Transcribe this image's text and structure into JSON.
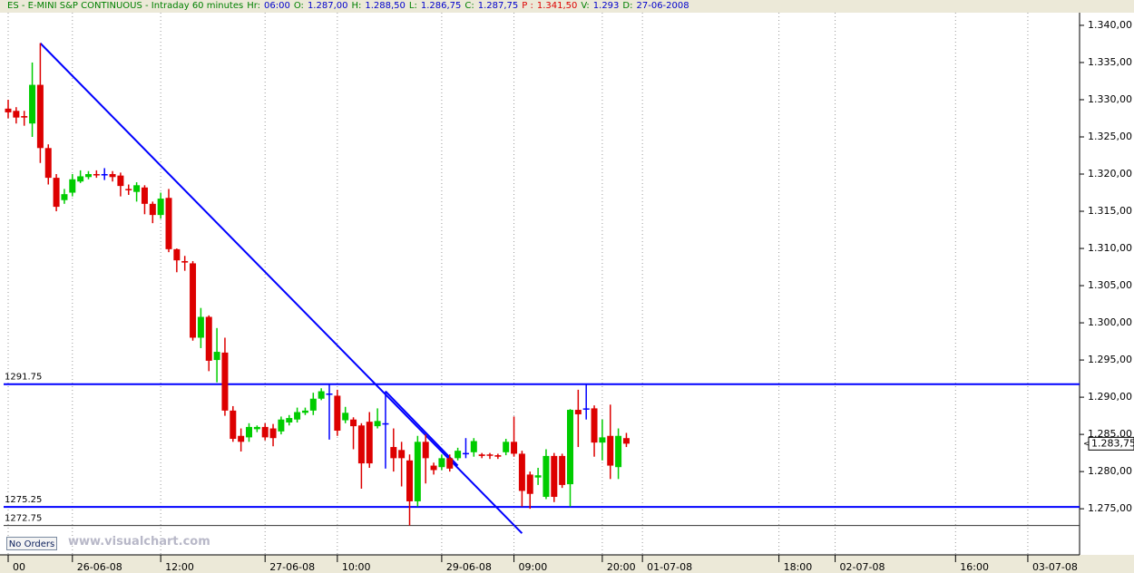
{
  "header": {
    "title": "ES - E-MINI S&P CONTINUOUS - Intraday 60 minutes",
    "title_color": "#008000",
    "fields": [
      {
        "label": "Hr:",
        "value": "06:00",
        "label_color": "#008000",
        "value_color": "#0000cc"
      },
      {
        "label": "O:",
        "value": "1.287,00",
        "label_color": "#008000",
        "value_color": "#0000cc"
      },
      {
        "label": "H:",
        "value": "1.288,50",
        "label_color": "#008000",
        "value_color": "#0000cc"
      },
      {
        "label": "L:",
        "value": "1.286,75",
        "label_color": "#008000",
        "value_color": "#0000cc"
      },
      {
        "label": "C:",
        "value": "1.287,75",
        "label_color": "#008000",
        "value_color": "#0000cc"
      },
      {
        "label": "P :",
        "value": "1.341,50",
        "label_color": "#dd0000",
        "value_color": "#dd0000"
      },
      {
        "label": "V:",
        "value": "1.293",
        "label_color": "#008000",
        "value_color": "#0000cc"
      },
      {
        "label": "D:",
        "value": "27-06-2008",
        "label_color": "#008000",
        "value_color": "#0000cc"
      }
    ]
  },
  "orders_button": "No Orders",
  "watermark": "www.visualchart.com",
  "chart_data": {
    "type": "candlestick",
    "categories": [
      "00",
      null,
      null,
      null,
      null,
      null,
      null,
      null,
      "26-06-08",
      null,
      null,
      null,
      null,
      null,
      null,
      null,
      null,
      null,
      null,
      "12:00",
      null,
      null,
      null,
      null,
      null,
      null,
      null,
      null,
      null,
      null,
      null,
      null,
      "27-06-08",
      null,
      null,
      null,
      null,
      null,
      null,
      null,
      null,
      "10:00",
      null,
      null,
      null,
      null,
      null,
      null,
      null,
      null,
      null,
      null,
      null,
      null,
      "29-06-08",
      null,
      null,
      null,
      null,
      null,
      null,
      null,
      null,
      "09:00",
      null,
      null,
      null,
      null,
      null,
      null,
      null,
      null,
      null,
      null,
      "20:00",
      null,
      null,
      null,
      null,
      "01-07-08",
      null,
      null,
      null,
      null,
      null,
      null,
      null,
      null,
      null,
      null,
      null,
      null,
      null,
      null,
      null,
      null,
      "18:00",
      null,
      null,
      null,
      null,
      null,
      null,
      "02-07-08",
      null,
      null,
      null,
      null,
      null,
      null,
      null,
      null,
      null,
      null,
      null,
      null,
      null,
      null,
      "16:00",
      null,
      null,
      null,
      null,
      null,
      null,
      null,
      null,
      "03-07-08"
    ],
    "open": [
      1328.8,
      1328.5,
      1327.8,
      1326.8,
      1332,
      1323.5,
      1319.5,
      1316.5,
      1317.5,
      1319,
      1319.6,
      1320,
      1320,
      1320,
      1319.8,
      1318,
      1317.6,
      1318.2,
      1316,
      1314.5,
      1316.8,
      1309.9,
      1308.3,
      1308,
      1298,
      1300.8,
      1295,
      1296,
      1288.2,
      1284.8,
      1284.6,
      1285.7,
      1286,
      1285.8,
      1285.4,
      1286.6,
      1287,
      1287.9,
      1288.2,
      1289.8,
      1290.5,
      1290.2,
      1286.9,
      1287,
      1286.2,
      1286.7,
      1286.1,
      1286.5,
      1283.3,
      1282.9,
      1281.5,
      1276,
      1284,
      1280.8,
      1280.6,
      1281.8,
      1281.8,
      1282.5,
      1282.6,
      1282.3,
      1282.3,
      1282.2,
      1282.6,
      1284,
      1282.4,
      1279.6,
      1279.2,
      1276.6,
      1282.1,
      1282.1,
      1278.3,
      1288.3,
      1288.5,
      1288.5,
      1283.9,
      1284.8,
      1280.6,
      1284.5,
      null,
      null,
      null,
      null,
      null,
      null,
      null,
      null,
      null,
      null,
      null,
      null,
      null,
      null,
      null,
      null,
      null,
      null,
      null,
      null,
      null,
      null,
      null,
      null,
      null,
      null,
      null,
      null,
      null,
      null,
      null,
      null,
      null,
      null,
      null,
      null,
      null,
      null,
      null,
      null,
      null,
      null,
      null,
      null,
      null,
      null,
      null,
      null,
      null,
      null
    ],
    "high": [
      1330,
      1329,
      1328.5,
      1335,
      1337.6,
      1324,
      1320,
      1318,
      1320,
      1320.5,
      1320.4,
      1320.5,
      1320.8,
      1320.4,
      1320.2,
      1318.6,
      1318.9,
      1318.5,
      1316.3,
      1317.5,
      1318,
      1310,
      1309,
      1308.3,
      1302,
      1301,
      1299.3,
      1298,
      1288.8,
      1285.8,
      1286.5,
      1286.2,
      1286.5,
      1286.4,
      1287.4,
      1287.6,
      1288.6,
      1288.6,
      1290.6,
      1291.2,
      1291.75,
      1291,
      1288.7,
      1287.3,
      1286.5,
      1288,
      1288.5,
      1290.8,
      1285.8,
      1284,
      1282.3,
      1284.8,
      1285,
      1281.2,
      1282.3,
      1282.3,
      1283.2,
      1284.5,
      1284.5,
      1282.5,
      1282.5,
      1282.4,
      1284.4,
      1287.4,
      1282.8,
      1280,
      1280.5,
      1283,
      1282.5,
      1282.4,
      1288.4,
      1291,
      1291.75,
      1288.9,
      1287,
      1289,
      1285.8,
      1285.2,
      null,
      null,
      null,
      null,
      null,
      null,
      null,
      null,
      null,
      null,
      null,
      null,
      null,
      null,
      null,
      null,
      null,
      null,
      null,
      null,
      null,
      null,
      null,
      null,
      null,
      null,
      null,
      null,
      null,
      null,
      null,
      null,
      null,
      null,
      null,
      null,
      null,
      null,
      null,
      null,
      null,
      null,
      null,
      null,
      null,
      null,
      null,
      null,
      null,
      null
    ],
    "low": [
      1327.5,
      1326.8,
      1326.5,
      1325,
      1321.5,
      1318.6,
      1315,
      1316,
      1317,
      1318.8,
      1319.3,
      1319.5,
      1319.2,
      1319,
      1317,
      1317.2,
      1316.3,
      1314.6,
      1313.4,
      1314,
      1309.5,
      1306.8,
      1307,
      1297.6,
      1296.6,
      1293.5,
      1292,
      1287.5,
      1284,
      1282.7,
      1284,
      1285.3,
      1284.2,
      1283.4,
      1285,
      1286.2,
      1286.6,
      1287.6,
      1287.6,
      1289.6,
      1284.3,
      1284.8,
      1286.5,
      1283,
      1277.7,
      1280.5,
      1285.8,
      1280.4,
      1280,
      1278,
      1272.75,
      1275.3,
      1278.4,
      1279.6,
      1280.2,
      1280,
      1281.5,
      1281.8,
      1282,
      1281.8,
      1281.7,
      1281.7,
      1282.2,
      1282,
      1275.3,
      1275,
      1278.2,
      1276.3,
      1275.9,
      1277.8,
      1275.3,
      1283.3,
      1287,
      1282,
      1281.5,
      1279,
      1279,
      1283.3,
      null,
      null,
      null,
      null,
      null,
      null,
      null,
      null,
      null,
      null,
      null,
      null,
      null,
      null,
      null,
      null,
      null,
      null,
      null,
      null,
      null,
      null,
      null,
      null,
      null,
      null,
      null,
      null,
      null,
      null,
      null,
      null,
      null,
      null,
      null,
      null,
      null,
      null,
      null,
      null,
      null,
      null,
      null,
      null,
      null,
      null,
      null,
      null,
      null,
      null
    ],
    "close": [
      1328.3,
      1327.6,
      1327.6,
      1332,
      1323.5,
      1319.5,
      1315.6,
      1317.3,
      1319.3,
      1319.7,
      1320,
      1319.9,
      1320,
      1319.6,
      1318.4,
      1317.9,
      1318.5,
      1316,
      1314.5,
      1316.7,
      1309.9,
      1308.4,
      1308.1,
      1298,
      1300.8,
      1294.9,
      1296.1,
      1288.2,
      1284.4,
      1284,
      1286,
      1286,
      1284.6,
      1284.5,
      1287,
      1287.2,
      1288,
      1288.2,
      1289.8,
      1290.8,
      1290.5,
      1285.5,
      1287.9,
      1286.1,
      1281.1,
      1281.1,
      1286.8,
      1286.5,
      1281.8,
      1281.8,
      1276,
      1284,
      1281.8,
      1280.2,
      1281.8,
      1280.4,
      1282.8,
      1282.5,
      1284.1,
      1282.1,
      1282.2,
      1282,
      1284,
      1282.4,
      1277.4,
      1277,
      1279.5,
      1282.1,
      1276.6,
      1278.2,
      1288.3,
      1287.7,
      1288.5,
      1283.9,
      1284.6,
      1280.8,
      1284.8,
      1283.75,
      null,
      null,
      null,
      null,
      null,
      null,
      null,
      null,
      null,
      null,
      null,
      null,
      null,
      null,
      null,
      null,
      null,
      null,
      null,
      null,
      null,
      null,
      null,
      null,
      null,
      null,
      null,
      null,
      null,
      null,
      null,
      null,
      null,
      null,
      null,
      null,
      null,
      null,
      null,
      null,
      null,
      null,
      null,
      null,
      null,
      null,
      null,
      null,
      null,
      null
    ],
    "up_color": "#00cc00",
    "down_color": "#dd0000",
    "doji_color": "#0000ff",
    "ylim": [
      1268.8,
      1341.7
    ],
    "yticks": [
      {
        "value": 1275,
        "label": "1.275,00"
      },
      {
        "value": 1280,
        "label": "1.280,00"
      },
      {
        "value": 1285,
        "label": "1.285,00"
      },
      {
        "value": 1290,
        "label": "1.290,00"
      },
      {
        "value": 1295,
        "label": "1.295,00"
      },
      {
        "value": 1300,
        "label": "1.300,00"
      },
      {
        "value": 1305,
        "label": "1.305,00"
      },
      {
        "value": 1310,
        "label": "1.310,00"
      },
      {
        "value": 1315,
        "label": "1.315,00"
      },
      {
        "value": 1320,
        "label": "1.320,00"
      },
      {
        "value": 1325,
        "label": "1.325,00"
      },
      {
        "value": 1330,
        "label": "1.330,00"
      },
      {
        "value": 1335,
        "label": "1.335,00"
      },
      {
        "value": 1340,
        "label": "1.340,00"
      }
    ],
    "grid": true,
    "hlines": [
      {
        "value": 1291.75,
        "color": "#0000ff"
      },
      {
        "value": 1275.25,
        "color": "#0000ff"
      },
      {
        "value": 1272.75,
        "color": "#333333"
      }
    ],
    "trendlines": [
      {
        "x": [
          4,
          64
        ],
        "y": [
          1337.6,
          1271.7
        ],
        "color": "#0000ff"
      },
      {
        "x": [
          47,
          56
        ],
        "y": [
          1290.8,
          1280.8
        ],
        "color": "#0000ff"
      }
    ],
    "last_price": {
      "value": 1283.75,
      "label": "1.283,75"
    }
  }
}
